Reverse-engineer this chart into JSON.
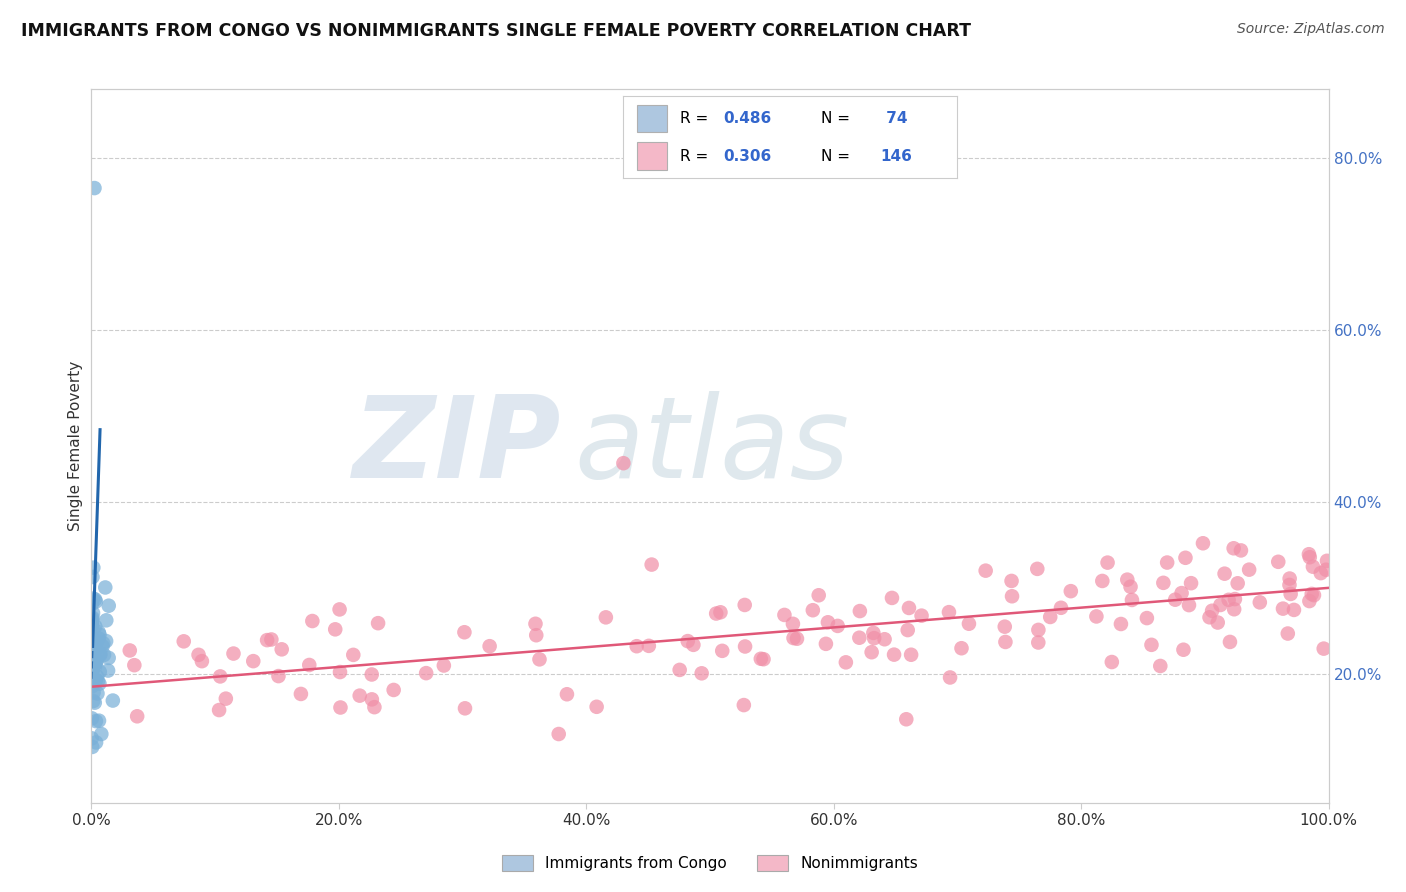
{
  "title": "IMMIGRANTS FROM CONGO VS NONIMMIGRANTS SINGLE FEMALE POVERTY CORRELATION CHART",
  "source": "Source: ZipAtlas.com",
  "ylabel": "Single Female Poverty",
  "xlim": [
    0.0,
    1.0
  ],
  "ylim": [
    0.05,
    0.88
  ],
  "yticks": [
    0.2,
    0.4,
    0.6,
    0.8
  ],
  "ytick_labels": [
    "20.0%",
    "40.0%",
    "60.0%",
    "80.0%"
  ],
  "xticks": [
    0.0,
    0.2,
    0.4,
    0.6,
    0.8,
    1.0
  ],
  "xtick_labels": [
    "0.0%",
    "20.0%",
    "40.0%",
    "60.0%",
    "80.0%",
    "100.0%"
  ],
  "blue_r": "0.486",
  "blue_n": "74",
  "pink_r": "0.306",
  "pink_n": "146",
  "blue_fill_color": "#aec7e0",
  "pink_fill_color": "#f4b8c8",
  "blue_scatter_color": "#7ab0d8",
  "pink_scatter_color": "#f090a8",
  "blue_line_color": "#2166ac",
  "pink_line_color": "#e05878",
  "text_color": "#333333",
  "rn_color": "#3366cc",
  "grid_color": "#cccccc",
  "right_tick_color": "#4472c4",
  "watermark_zip_color": "#c5d5e5",
  "watermark_atlas_color": "#b8cdd8",
  "legend_label1": "Immigrants from Congo",
  "legend_label2": "Nonimmigrants",
  "background_color": "#ffffff",
  "pink_reg_intercept": 0.185,
  "pink_reg_slope": 0.115
}
